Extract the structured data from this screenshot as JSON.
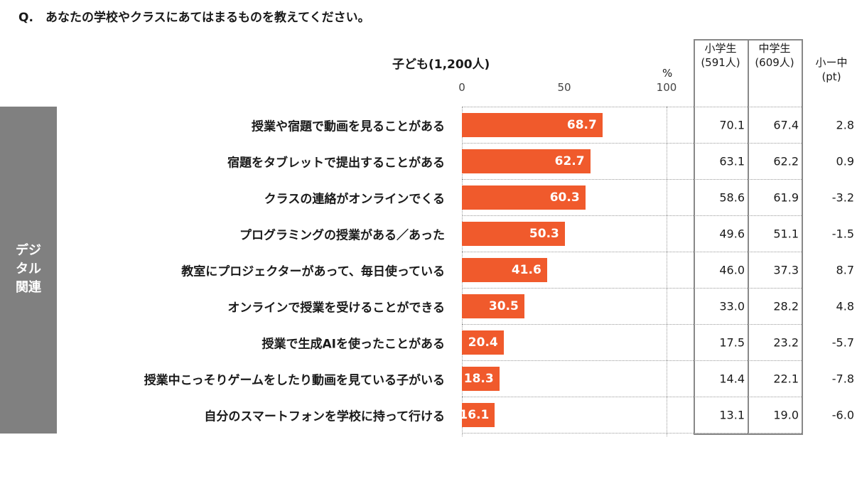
{
  "question": {
    "prefix": "Q.",
    "text": "あなたの学校やクラスにあてはまるものを教えてください。"
  },
  "chart_data": {
    "type": "bar",
    "orientation": "horizontal",
    "title": "子ども(1,200人)",
    "unit": "%",
    "xlim": [
      0,
      100
    ],
    "ticks": [
      "0",
      "50",
      "100"
    ],
    "group_label": "デジ\nタル\n関連",
    "categories": [
      "授業や宿題で動画を見ることがある",
      "宿題をタブレットで提出することがある",
      "クラスの連絡がオンラインでくる",
      "プログラミングの授業がある／あった",
      "教室にプロジェクターがあって、毎日使っている",
      "オンラインで授業を受けることができる",
      "授業で生成AIを使ったことがある",
      "授業中こっそりゲームをしたり動画を見ている子がいる",
      "自分のスマートフォンを学校に持って行ける"
    ],
    "values": [
      68.7,
      62.7,
      60.3,
      50.3,
      41.6,
      30.5,
      20.4,
      18.3,
      16.1
    ],
    "bar_color": "#f05a2c",
    "table": {
      "columns": [
        "小学生\n(591人)",
        "中学生\n(609人)",
        "小ー中\n(pt)"
      ],
      "elementary": [
        "70.1",
        "63.1",
        "58.6",
        "49.6",
        "46.0",
        "33.0",
        "17.5",
        "14.4",
        "13.1"
      ],
      "junior_high": [
        "67.4",
        "62.2",
        "61.9",
        "51.1",
        "37.3",
        "28.2",
        "23.2",
        "22.1",
        "19.0"
      ],
      "diff": [
        "2.8",
        "0.9",
        "-3.2",
        "-1.5",
        "8.7",
        "4.8",
        "-5.7",
        "-7.8",
        "-6.0"
      ]
    }
  }
}
